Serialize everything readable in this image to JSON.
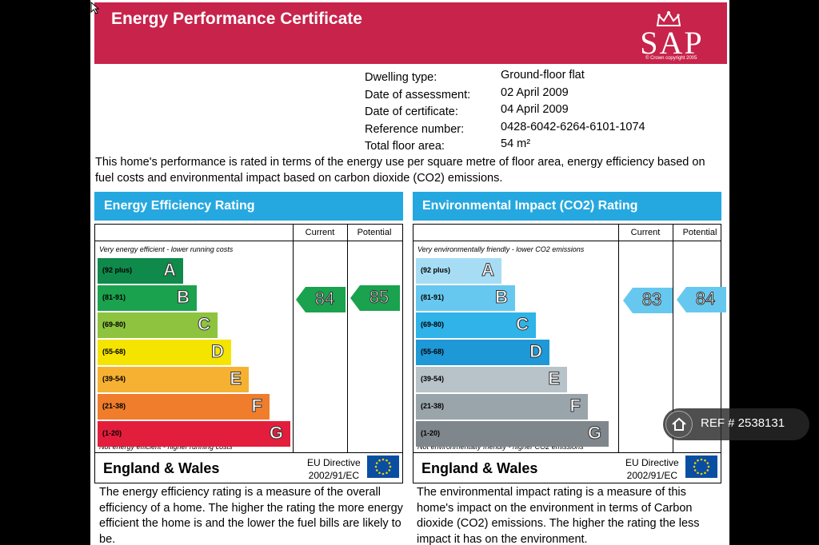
{
  "header": {
    "title": "Energy Performance Certificate",
    "logo_text": "SAP",
    "logo_copyright": "© Crown copyright 2005"
  },
  "dwelling": [
    {
      "label": "Dwelling type:",
      "value": "Ground-floor flat"
    },
    {
      "label": "Date of assessment:",
      "value": "02 April 2009"
    },
    {
      "label": "Date of certificate:",
      "value": "04 April 2009"
    },
    {
      "label": "Reference number:",
      "value": "0428-6042-6264-6101-1074"
    },
    {
      "label": "Total floor area:",
      "value": "54 m²"
    }
  ],
  "intro": "This home's performance is rated in terms of the energy use per square metre of floor area, energy efficiency based on fuel costs and environmental impact based on carbon dioxide (CO2) emissions.",
  "energy": {
    "title": "Energy Efficiency Rating",
    "col_current": "Current",
    "col_potential": "Potential",
    "top_note": "Very energy efficient - lower running costs",
    "bottom_note": "Not energy efficient - higher running costs",
    "bands": [
      {
        "range": "(92 plus)",
        "letter": "A",
        "color": "#0f8a4b"
      },
      {
        "range": "(81-91)",
        "letter": "B",
        "color": "#1ba24e"
      },
      {
        "range": "(69-80)",
        "letter": "C",
        "color": "#8dc33f"
      },
      {
        "range": "(55-68)",
        "letter": "D",
        "color": "#f5e400"
      },
      {
        "range": "(39-54)",
        "letter": "E",
        "color": "#f6b132"
      },
      {
        "range": "(21-38)",
        "letter": "F",
        "color": "#ef7d2c"
      },
      {
        "range": "(1-20)",
        "letter": "G",
        "color": "#e31d3c"
      }
    ],
    "current": "84",
    "potential": "85",
    "arrow_color": "#1ba24e",
    "region": "England & Wales",
    "directive": "EU Directive",
    "directive_code": "2002/91/EC",
    "description": "The energy efficiency rating is a measure of the overall efficiency of a home. The higher the rating the more energy efficient the home is and the lower the fuel bills are likely to be."
  },
  "environment": {
    "title": "Environmental Impact (CO2) Rating",
    "col_current": "Current",
    "col_potential": "Potential",
    "top_note": "Very environmentally friendly - lower CO2 emissions",
    "bottom_note": "Not environmentally friendly - higher CO2 emissions",
    "bands": [
      {
        "range": "(92 plus)",
        "letter": "A",
        "color": "#a6ddf5"
      },
      {
        "range": "(81-91)",
        "letter": "B",
        "color": "#67c8ef"
      },
      {
        "range": "(69-80)",
        "letter": "C",
        "color": "#2fb3e8"
      },
      {
        "range": "(55-68)",
        "letter": "D",
        "color": "#1e98d6"
      },
      {
        "range": "(39-54)",
        "letter": "E",
        "color": "#b8c2c9"
      },
      {
        "range": "(21-38)",
        "letter": "F",
        "color": "#9aa4ab"
      },
      {
        "range": "(1-20)",
        "letter": "G",
        "color": "#7f878d"
      }
    ],
    "current": "83",
    "potential": "84",
    "arrow_color": "#67c8ef",
    "region": "England & Wales",
    "directive": "EU Directive",
    "directive_code": "2002/91/EC",
    "description": "The environmental impact rating is a measure of this home's impact on the environment in terms of Carbon dioxide (CO2) emissions. The higher the rating the less impact it has on the environment."
  },
  "ref_badge": {
    "text": "REF # 2538131"
  }
}
